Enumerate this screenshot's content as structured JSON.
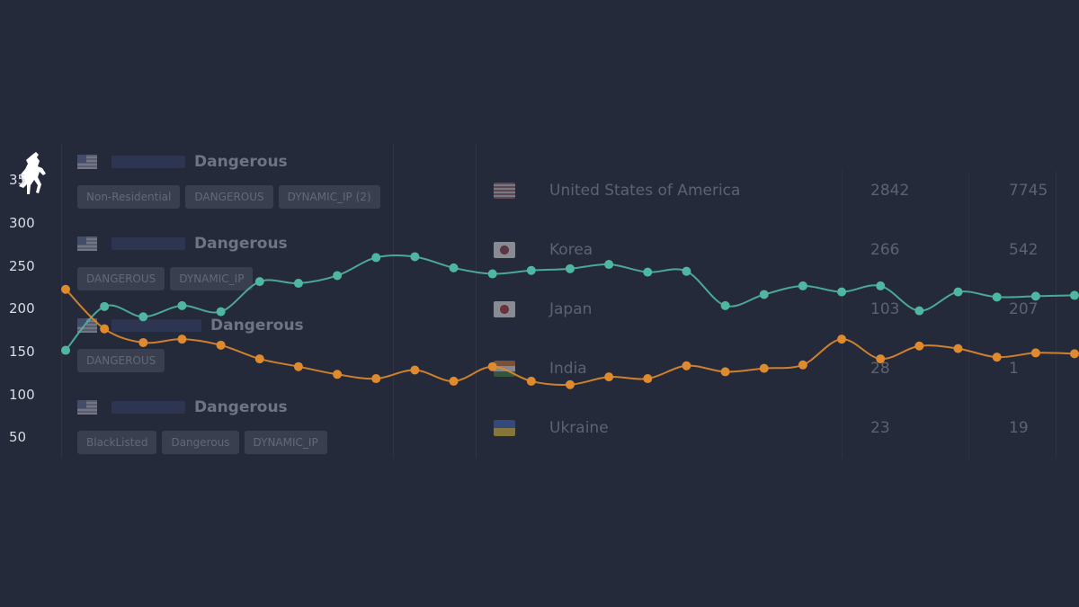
{
  "ip_entries": [
    {
      "status": "Dangerous",
      "tags": [
        "Non-Residential",
        "DANGEROUS",
        "DYNAMIC_IP (2)"
      ]
    },
    {
      "status": "Dangerous",
      "tags": [
        "DANGEROUS",
        "DYNAMIC_IP"
      ]
    },
    {
      "status": "Dangerous",
      "tags": [
        "DANGEROUS"
      ]
    },
    {
      "status": "Dangerous",
      "tags": [
        "BlackListed",
        "Dangerous",
        "DYNAMIC_IP"
      ]
    }
  ],
  "countries": [
    {
      "name": "United States of America",
      "value1": "2842",
      "value2": "7745",
      "flag": "us"
    },
    {
      "name": "Korea",
      "value1": "266",
      "value2": "542",
      "flag": "kr"
    },
    {
      "name": "Japan",
      "value1": "103",
      "value2": "207",
      "flag": "jp"
    },
    {
      "name": "India",
      "value1": "28",
      "value2": "1",
      "flag": "in"
    },
    {
      "name": "Ukraine",
      "value1": "23",
      "value2": "19",
      "flag": "ua"
    }
  ],
  "logo_icon": "horse-rider-icon",
  "colors": {
    "background": "#252a3a",
    "teal": "#4fb6a2",
    "orange": "#e08a2e"
  },
  "chart_data": {
    "type": "line",
    "y_ticks": [
      "35",
      "300",
      "250",
      "200",
      "150",
      "100",
      "50"
    ],
    "ylim": [
      50,
      350
    ],
    "grid": "vertical",
    "x": [
      0,
      1,
      2,
      3,
      4,
      5,
      6,
      7,
      8,
      9,
      10,
      11,
      12,
      13,
      14,
      15,
      16,
      17,
      18,
      19,
      20,
      21,
      22,
      23,
      24,
      25,
      26
    ],
    "series": [
      {
        "color": "#4fb6a2",
        "values": [
          151,
          202,
          190,
          203,
          196,
          231,
          229,
          238,
          259,
          260,
          247,
          240,
          244,
          246,
          251,
          242,
          243,
          203,
          216,
          226,
          219,
          226,
          197,
          219,
          213,
          214,
          215
        ]
      },
      {
        "color": "#e08a2e",
        "values": [
          222,
          176,
          160,
          164,
          157,
          141,
          132,
          123,
          118,
          128,
          115,
          132,
          115,
          111,
          120,
          118,
          133,
          126,
          130,
          134,
          164,
          141,
          156,
          153,
          143,
          148,
          147
        ]
      }
    ]
  }
}
